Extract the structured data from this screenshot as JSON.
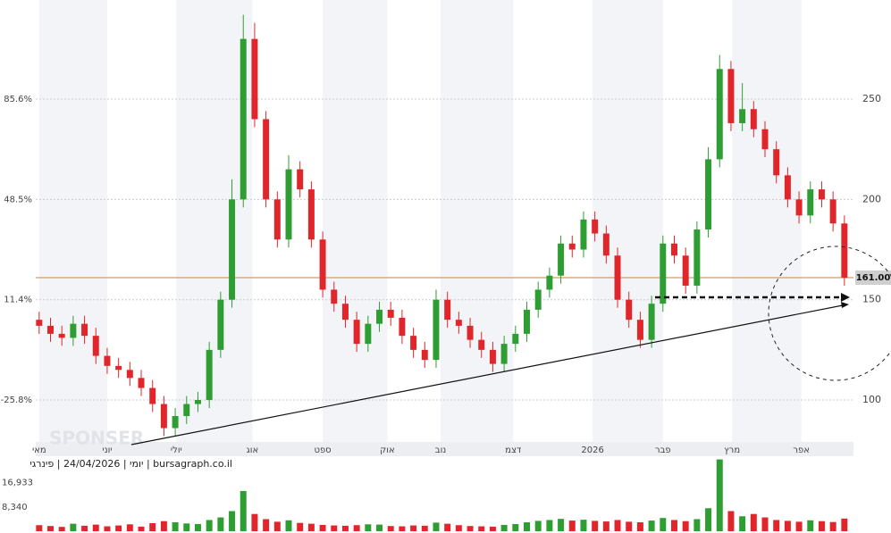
{
  "chart_data": {
    "type": "candlestick",
    "header": "יומי | 24/04/2026 | פינרגי | bursagraph.co.il",
    "watermark": "SPONSER",
    "open": [
      140,
      137,
      133,
      131,
      138,
      132,
      122,
      117,
      115,
      111,
      106,
      98,
      86,
      92,
      98,
      100,
      125,
      150,
      200,
      280,
      240,
      200,
      180,
      215,
      205,
      180,
      155,
      148,
      140,
      128,
      138,
      145,
      141,
      132,
      125,
      120,
      150,
      140,
      137,
      130,
      125,
      118,
      128,
      133,
      145,
      155,
      162,
      178,
      175,
      190,
      183,
      172,
      150,
      140,
      130,
      148,
      178,
      172,
      157,
      185,
      220,
      265,
      238,
      245,
      235,
      225,
      212,
      200,
      192,
      205,
      200,
      188
    ],
    "high": [
      144,
      141,
      137,
      142,
      142,
      136,
      126,
      121,
      119,
      115,
      110,
      102,
      96,
      102,
      104,
      129,
      154,
      210,
      292,
      288,
      244,
      204,
      222,
      219,
      209,
      184,
      159,
      152,
      144,
      142,
      149,
      149,
      145,
      136,
      129,
      155,
      154,
      144,
      141,
      134,
      129,
      132,
      137,
      149,
      159,
      166,
      182,
      182,
      194,
      194,
      187,
      176,
      154,
      144,
      152,
      182,
      182,
      176,
      189,
      226,
      272,
      269,
      258,
      249,
      239,
      229,
      216,
      204,
      209,
      209,
      204,
      192
    ],
    "low": [
      133,
      129,
      127,
      127,
      128,
      118,
      113,
      111,
      107,
      102,
      94,
      82,
      82,
      88,
      94,
      96,
      121,
      146,
      196,
      236,
      196,
      176,
      176,
      201,
      176,
      151,
      144,
      136,
      124,
      124,
      134,
      137,
      128,
      121,
      116,
      116,
      136,
      133,
      126,
      121,
      114,
      114,
      124,
      129,
      141,
      151,
      158,
      171,
      171,
      179,
      168,
      146,
      136,
      126,
      126,
      144,
      168,
      153,
      153,
      181,
      216,
      234,
      234,
      231,
      221,
      208,
      196,
      188,
      188,
      196,
      184,
      157
    ],
    "close": [
      137,
      133,
      131,
      138,
      132,
      122,
      117,
      115,
      111,
      106,
      98,
      86,
      92,
      98,
      100,
      125,
      150,
      200,
      280,
      240,
      200,
      180,
      215,
      205,
      180,
      155,
      148,
      140,
      128,
      138,
      145,
      141,
      132,
      125,
      120,
      150,
      140,
      137,
      130,
      125,
      118,
      128,
      133,
      145,
      155,
      162,
      178,
      175,
      190,
      183,
      172,
      150,
      140,
      130,
      148,
      178,
      172,
      157,
      185,
      220,
      265,
      238,
      245,
      235,
      225,
      212,
      200,
      192,
      205,
      200,
      188,
      161
    ],
    "volume": [
      2100,
      1800,
      1500,
      2600,
      1900,
      2300,
      1700,
      2000,
      2400,
      1600,
      2800,
      3500,
      3100,
      2700,
      2500,
      3900,
      4800,
      7000,
      14000,
      6000,
      4200,
      3300,
      3800,
      2900,
      2600,
      2200,
      2000,
      1900,
      2100,
      2400,
      2300,
      1800,
      1700,
      2000,
      1900,
      3000,
      2600,
      2100,
      1800,
      1700,
      1600,
      2200,
      2500,
      3100,
      3600,
      3900,
      4300,
      3700,
      4000,
      3600,
      3400,
      3900,
      3300,
      3100,
      3700,
      4600,
      3900,
      3500,
      4200,
      8000,
      25000,
      7000,
      5200,
      6000,
      4800,
      3900,
      3600,
      3300,
      3800,
      3500,
      3200,
      4400
    ],
    "up_color": "#2e9d32",
    "down_color": "#e0262b",
    "xlim": [
      -0.3,
      71.8
    ],
    "xticks": [
      {
        "value": 0,
        "label": "מאי"
      },
      {
        "value": 6,
        "label": "יוני"
      },
      {
        "value": 12.1,
        "label": "יולי"
      },
      {
        "value": 18.8,
        "label": "אוג"
      },
      {
        "value": 25,
        "label": "ספט"
      },
      {
        "value": 30.7,
        "label": "אוק"
      },
      {
        "value": 35.4,
        "label": "נוב"
      },
      {
        "value": 41.8,
        "label": "דצמ"
      },
      {
        "value": 48.8,
        "label": "2026"
      },
      {
        "value": 55,
        "label": "פבר"
      },
      {
        "value": 61.1,
        "label": "מרץ"
      },
      {
        "value": 67.2,
        "label": "אפר"
      }
    ],
    "ylim": [
      79.1,
      299.4
    ],
    "yticks": [
      100,
      150,
      200,
      250
    ],
    "y2lim": [
      -41.3,
      122.3
    ],
    "y2ticks": [
      {
        "value": -25.8,
        "label": "-25.8%"
      },
      {
        "value": 11.4,
        "label": "11.4%"
      },
      {
        "value": 48.5,
        "label": "48.5%"
      },
      {
        "value": 85.6,
        "label": "85.6%"
      }
    ],
    "volume_lim": [
      0,
      25800
    ],
    "volume_ticks": [
      {
        "value": 8340,
        "label": "8,340"
      },
      {
        "value": 16933,
        "label": "16,933"
      }
    ],
    "last_price": {
      "value": 161,
      "label": "161.00"
    },
    "last_price_color": "#d9822b",
    "grid": true
  }
}
